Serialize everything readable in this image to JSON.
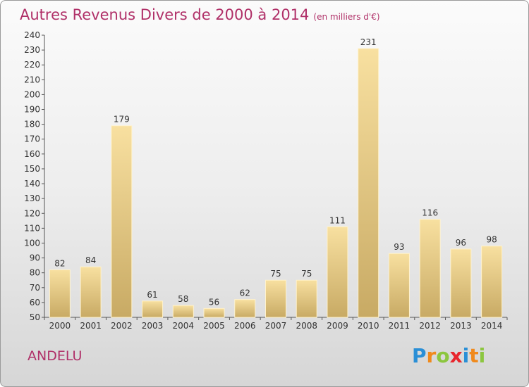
{
  "title": "Autres Revenus Divers de 2000 à 2014",
  "unit": "(en milliers d'€)",
  "commune": "ANDELU",
  "logo": {
    "text": "Proxiti",
    "letters": [
      {
        "ch": "P",
        "color": "#2a8fd6"
      },
      {
        "ch": "r",
        "color": "#f08a1c"
      },
      {
        "ch": "o",
        "color": "#8cc63f"
      },
      {
        "ch": "x",
        "color": "#e8262d"
      },
      {
        "ch": "i",
        "color": "#2a8fd6"
      },
      {
        "ch": "t",
        "color": "#f08a1c"
      },
      {
        "ch": "i",
        "color": "#8cc63f"
      }
    ]
  },
  "chart_data": {
    "type": "bar",
    "categories": [
      "2000",
      "2001",
      "2002",
      "2003",
      "2004",
      "2005",
      "2006",
      "2007",
      "2008",
      "2009",
      "2010",
      "2011",
      "2012",
      "2013",
      "2014"
    ],
    "values": [
      82,
      84,
      179,
      61,
      58,
      56,
      62,
      75,
      75,
      111,
      231,
      93,
      116,
      96,
      98
    ],
    "ylim": [
      50,
      240
    ],
    "ytick_step": 10,
    "grid": false,
    "bar_color_light": "#f8e0a0",
    "bar_color_dark": "#c8aa64",
    "title": "Autres Revenus Divers de 2000 à 2014",
    "xlabel": "",
    "ylabel": ""
  }
}
